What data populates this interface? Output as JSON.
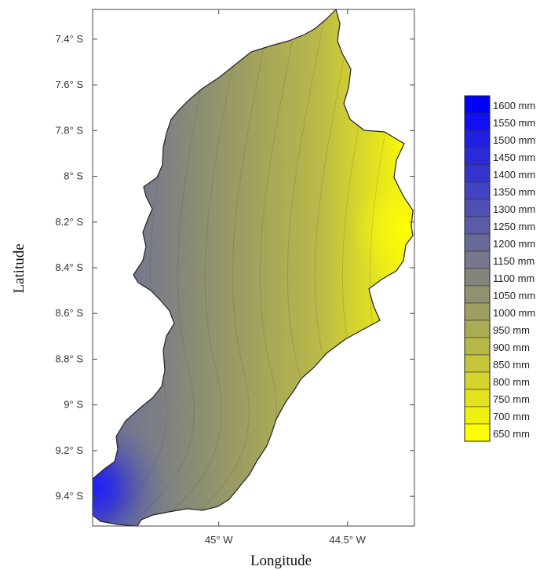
{
  "axes": {
    "xlabel": "Longitude",
    "ylabel": "Latitude",
    "x_ticks": [
      {
        "value": -45.0,
        "label": "45° W"
      },
      {
        "value": -44.5,
        "label": "44.5° W"
      }
    ],
    "y_ticks": [
      {
        "value": -7.4,
        "label": "7.4° S"
      },
      {
        "value": -7.6,
        "label": "7.6° S"
      },
      {
        "value": -7.8,
        "label": "7.8° S"
      },
      {
        "value": -8.0,
        "label": "8° S"
      },
      {
        "value": -8.2,
        "label": "8.2° S"
      },
      {
        "value": -8.4,
        "label": "8.4° S"
      },
      {
        "value": -8.6,
        "label": "8.6° S"
      },
      {
        "value": -8.8,
        "label": "8.8° S"
      },
      {
        "value": -9.0,
        "label": "9° S"
      },
      {
        "value": -9.2,
        "label": "9.2° S"
      },
      {
        "value": -9.4,
        "label": "9.4° S"
      }
    ]
  },
  "legend": {
    "levels": [
      {
        "label": "1600 mm",
        "color": "#0000ff"
      },
      {
        "label": "1550 mm",
        "color": "#1010f0"
      },
      {
        "label": "1500 mm",
        "color": "#2020e0"
      },
      {
        "label": "1450 mm",
        "color": "#2a2ad6"
      },
      {
        "label": "1400 mm",
        "color": "#3535cc"
      },
      {
        "label": "1350 mm",
        "color": "#4242c2"
      },
      {
        "label": "1300 mm",
        "color": "#4f4fb4"
      },
      {
        "label": "1250 mm",
        "color": "#5c5ca6"
      },
      {
        "label": "1200 mm",
        "color": "#696a98"
      },
      {
        "label": "1150 mm",
        "color": "#76778a"
      },
      {
        "label": "1100 mm",
        "color": "#83847c"
      },
      {
        "label": "1050 mm",
        "color": "#90916f"
      },
      {
        "label": "1000 mm",
        "color": "#9d9e62"
      },
      {
        "label": "950 mm",
        "color": "#aaab55"
      },
      {
        "label": "900 mm",
        "color": "#b8b848"
      },
      {
        "label": "850 mm",
        "color": "#c6c63a"
      },
      {
        "label": "800 mm",
        "color": "#d4d42c"
      },
      {
        "label": "750 mm",
        "color": "#e2e21e"
      },
      {
        "label": "700 mm",
        "color": "#f0f010"
      },
      {
        "label": "650 mm",
        "color": "#ffff00"
      }
    ]
  }
}
